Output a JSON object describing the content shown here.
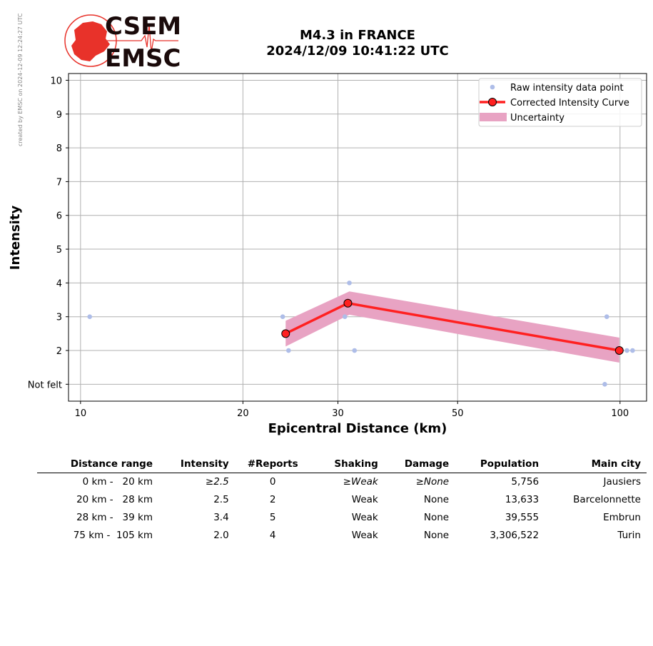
{
  "watermark": "created by EMSC on 2024-12-09 12:24:27 UTC",
  "logo": {
    "line1": "CSEM",
    "line2": "EMSC"
  },
  "title": {
    "line1": "M4.3 in FRANCE",
    "line2": "2024/12/09 10:41:22 UTC"
  },
  "colors": {
    "raw": "#aebde8",
    "curve": "#ff2020",
    "uncertainty": "#e8a3c3",
    "grid": "#b0b0b0",
    "logo_red": "#e8322a"
  },
  "chart_data": {
    "type": "line",
    "xlabel": "Epicentral Distance (km)",
    "ylabel": "Intensity",
    "x_scale": "log",
    "xlim": [
      9.5,
      112
    ],
    "ylim": [
      0.5,
      10.2
    ],
    "x_ticks": [
      10,
      20,
      30,
      50,
      100
    ],
    "y_ticks": [
      {
        "value": 1,
        "label": "Not felt"
      },
      {
        "value": 2,
        "label": "2"
      },
      {
        "value": 3,
        "label": "3"
      },
      {
        "value": 4,
        "label": "4"
      },
      {
        "value": 5,
        "label": "5"
      },
      {
        "value": 6,
        "label": "6"
      },
      {
        "value": 7,
        "label": "7"
      },
      {
        "value": 8,
        "label": "8"
      },
      {
        "value": 9,
        "label": "9"
      },
      {
        "value": 10,
        "label": "10"
      }
    ],
    "grid": true,
    "legend_position": "top-right",
    "series": [
      {
        "name": "Raw intensity data point",
        "kind": "scatter",
        "points": [
          [
            10.4,
            3
          ],
          [
            23.7,
            3
          ],
          [
            24.3,
            2
          ],
          [
            30.9,
            3
          ],
          [
            31.5,
            4
          ],
          [
            32.2,
            2
          ],
          [
            94.5,
            3
          ],
          [
            93.7,
            1
          ],
          [
            103,
            2
          ],
          [
            105.5,
            2
          ]
        ]
      },
      {
        "name": "Corrected Intensity Curve",
        "kind": "line",
        "points": [
          [
            24,
            2.5
          ],
          [
            31.3,
            3.4
          ],
          [
            99.7,
            2.0
          ]
        ]
      },
      {
        "name": "Uncertainty",
        "kind": "band",
        "upper": [
          [
            24,
            2.88
          ],
          [
            31.5,
            3.75
          ],
          [
            99.7,
            2.38
          ]
        ],
        "lower": [
          [
            24,
            2.12
          ],
          [
            31.5,
            3.06
          ],
          [
            99.7,
            1.64
          ]
        ]
      }
    ]
  },
  "table": {
    "headers": [
      "Distance range",
      "Intensity",
      "#Reports",
      "Shaking",
      "Damage",
      "Population",
      "Main city"
    ],
    "rows": [
      {
        "range": "0 km -   20 km",
        "intensity": "≥2.5",
        "reports": "0",
        "shaking": "≥Weak",
        "damage": "≥None",
        "population": "5,756",
        "city": "Jausiers",
        "italic": true
      },
      {
        "range": "20 km -   28 km",
        "intensity": "2.5",
        "reports": "2",
        "shaking": "Weak",
        "damage": "None",
        "population": "13,633",
        "city": "Barcelonnette",
        "italic": false
      },
      {
        "range": "28 km -   39 km",
        "intensity": "3.4",
        "reports": "5",
        "shaking": "Weak",
        "damage": "None",
        "population": "39,555",
        "city": "Embrun",
        "italic": false
      },
      {
        "range": "75 km -  105 km",
        "intensity": "2.0",
        "reports": "4",
        "shaking": "Weak",
        "damage": "None",
        "population": "3,306,522",
        "city": "Turin",
        "italic": false
      }
    ]
  }
}
